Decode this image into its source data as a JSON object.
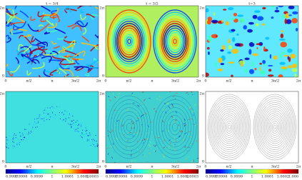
{
  "top_panels": [
    {
      "title": "t = 3/4",
      "xticks": [
        "0",
        "π/2",
        "π",
        "3π/2",
        "2π"
      ],
      "yticks": [
        "2π",
        "0"
      ]
    },
    {
      "title": "t = 3/2",
      "xticks": [
        "0",
        "π/2",
        "π",
        "3π/2",
        "2π"
      ],
      "yticks": [
        "2π",
        "0"
      ]
    },
    {
      "title": "t=3",
      "xticks": [
        "0",
        "π/2",
        "π",
        "3π/2",
        "2π"
      ],
      "yticks": [
        "2π",
        "0"
      ]
    }
  ],
  "bottom_panels": [
    {
      "xticks": [
        "0",
        "π/2",
        "π",
        "3π/2",
        "2π"
      ],
      "yticks": [
        "2π",
        "0"
      ],
      "colorbar": [
        "0.9997",
        "0.9998",
        "0.9999",
        "1",
        "1.0001",
        "1.0002",
        "1.0003"
      ]
    },
    {
      "xticks": [
        "0",
        "π/2",
        "π",
        "3π/2",
        "2π"
      ],
      "yticks": [
        "2π",
        "0"
      ],
      "colorbar": [
        "0.9997",
        "0.9998",
        "0.9999",
        "1",
        "1.0001",
        "1.0002",
        "1.0003"
      ]
    },
    {
      "xticks": [
        "0",
        "π/2",
        "π",
        "3π/2",
        "2π"
      ],
      "yticks": [
        "2π",
        "0"
      ],
      "colorbar": [
        "0.9997",
        "0.9998",
        "0.9999",
        "1",
        "1.0001",
        "1.0002",
        "1.000"
      ]
    }
  ]
}
